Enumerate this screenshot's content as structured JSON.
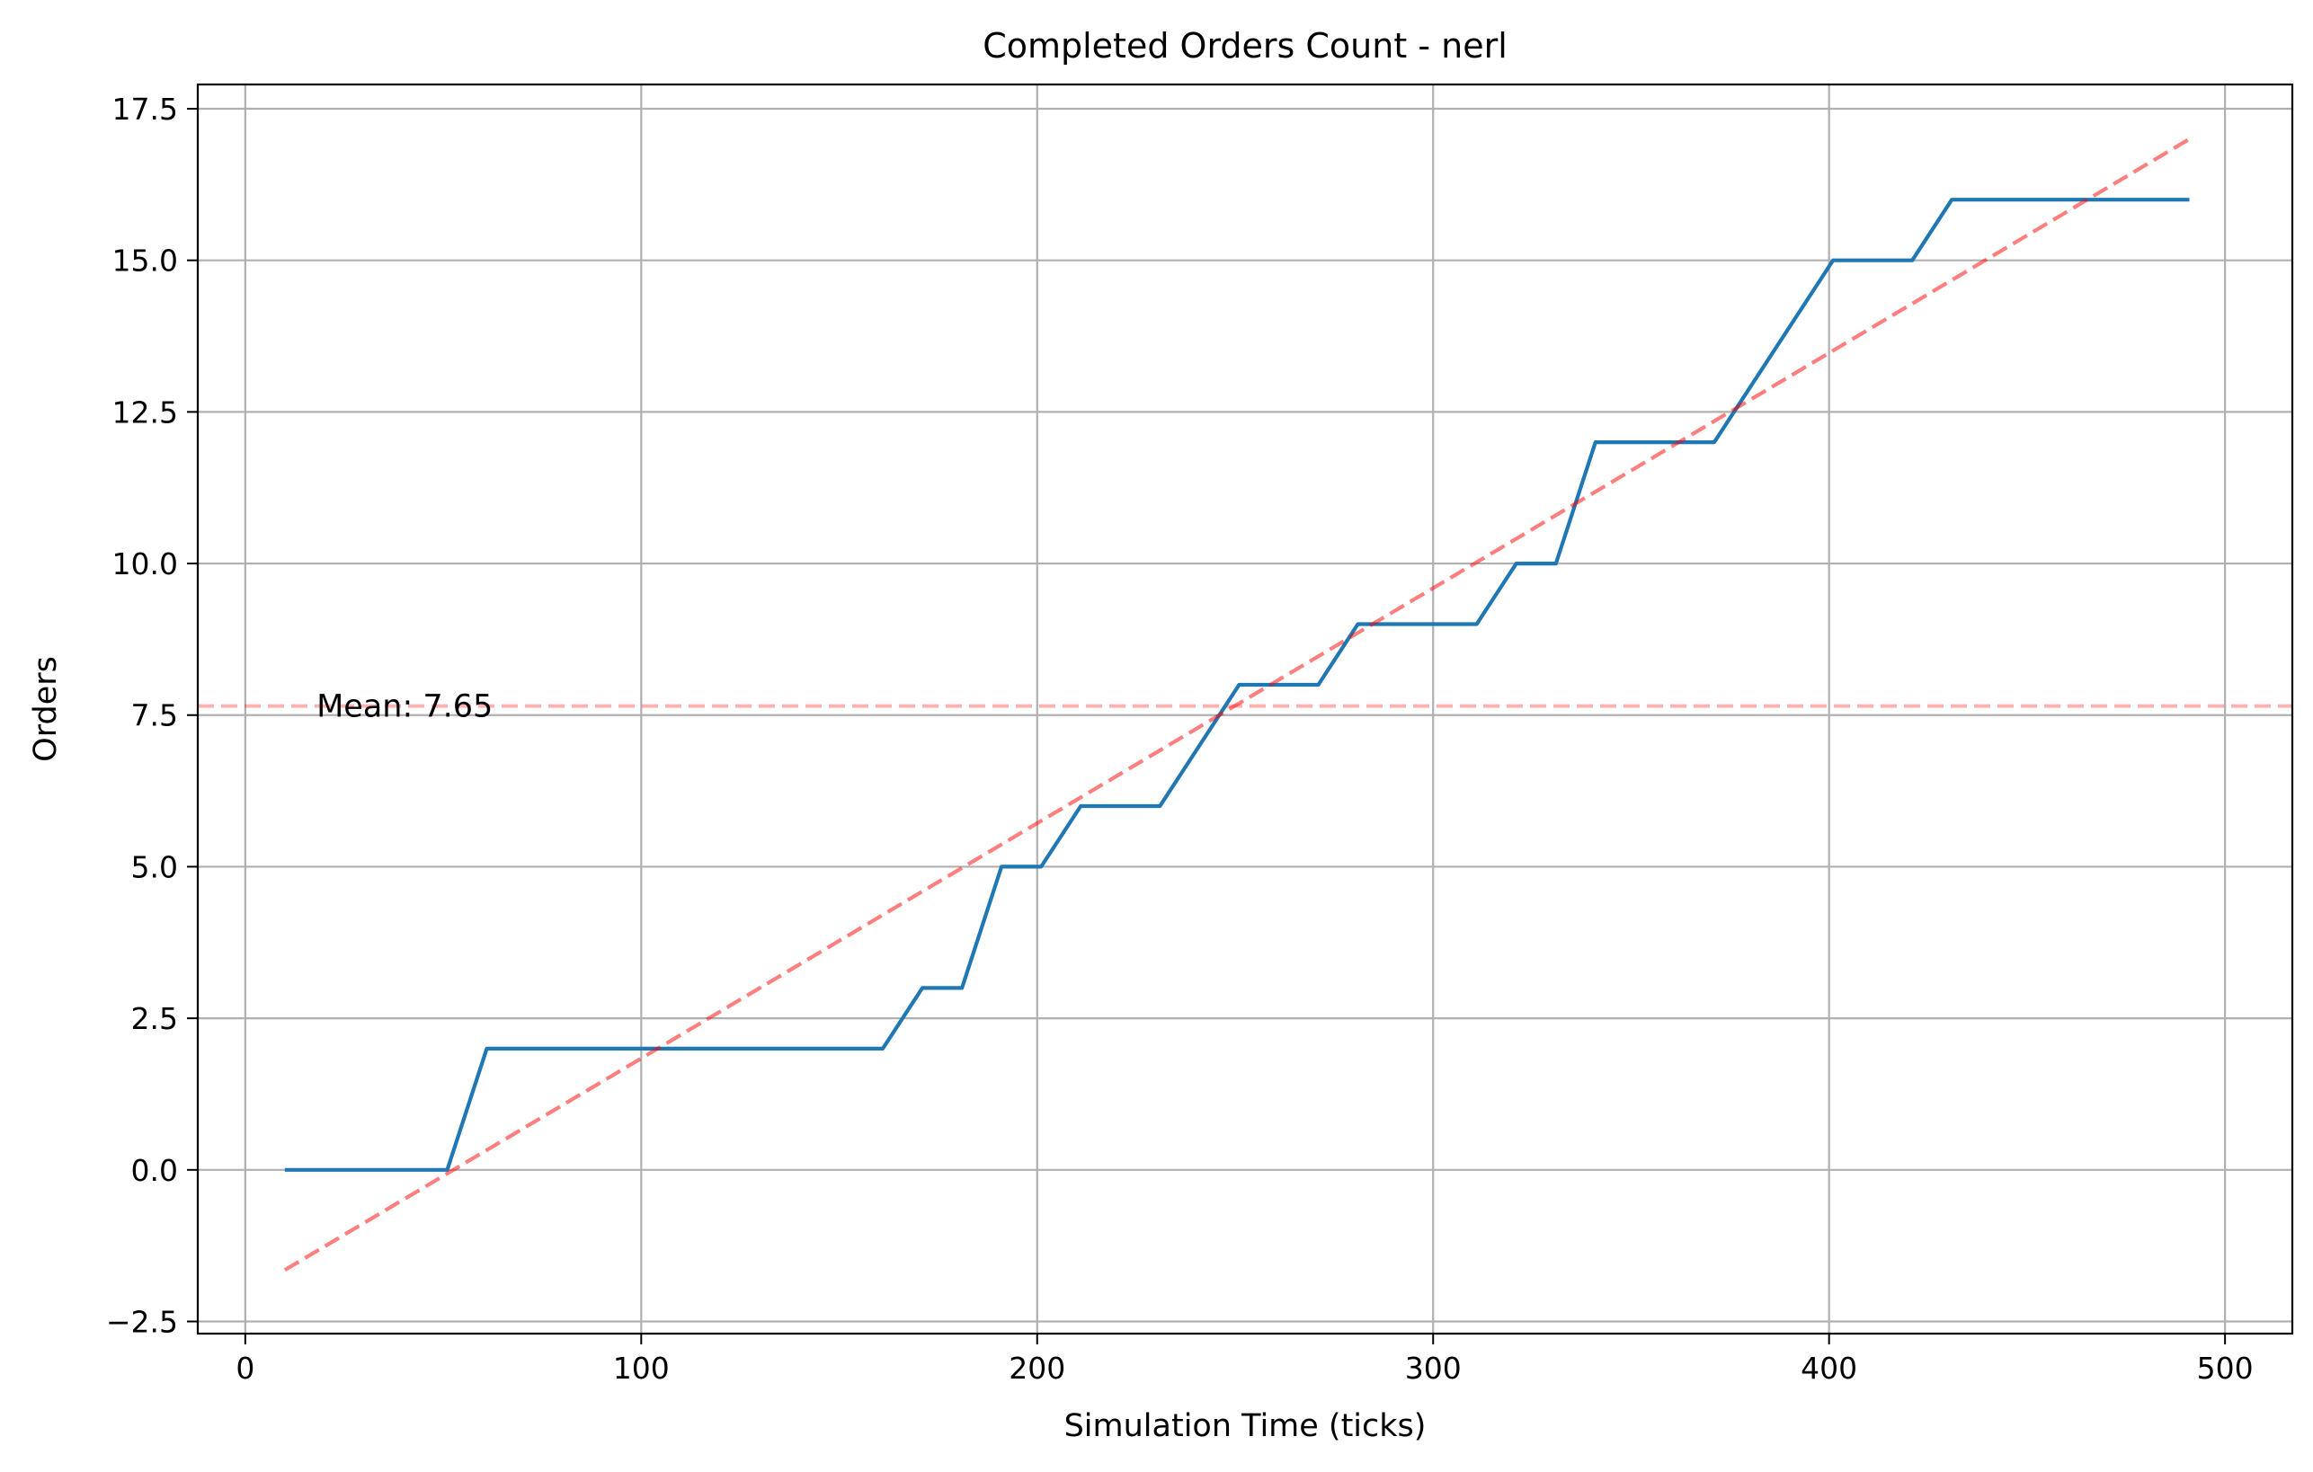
{
  "chart_data": {
    "type": "line",
    "title": "Completed Orders Count - nerl",
    "xlabel": "Simulation Time (ticks)",
    "ylabel": "Orders",
    "xlim": [
      -12,
      517
    ],
    "ylim": [
      -2.7,
      17.9
    ],
    "xticks": [
      0,
      100,
      200,
      300,
      400,
      500
    ],
    "yticks": [
      -2.5,
      0.0,
      2.5,
      5.0,
      7.5,
      10.0,
      12.5,
      15.0,
      17.5
    ],
    "xtick_labels": [
      "0",
      "100",
      "200",
      "300",
      "400",
      "500"
    ],
    "ytick_labels": [
      "−2.5",
      "0.0",
      "2.5",
      "5.0",
      "7.5",
      "10.0",
      "12.5",
      "15.0",
      "17.5"
    ],
    "grid": true,
    "series": [
      {
        "color": "#1f77b4",
        "style": "solid",
        "x": [
          10,
          51,
          61,
          161,
          171,
          181,
          191,
          201,
          211,
          231,
          251,
          271,
          281,
          311,
          321,
          331,
          341,
          371,
          401,
          421,
          431,
          491
        ],
        "y": [
          0,
          0,
          2,
          2,
          3,
          3,
          5,
          5,
          6,
          6,
          8,
          8,
          9,
          9,
          10,
          10,
          12,
          12,
          15,
          15,
          16,
          16
        ]
      },
      {
        "color": "#ff0000",
        "opacity": 0.5,
        "style": "dashed",
        "x": [
          10,
          491
        ],
        "y": [
          -1.65,
          17.0
        ]
      }
    ],
    "hlines": [
      {
        "y": 7.65,
        "color": "#ff0000",
        "opacity": 0.3,
        "style": "dashed"
      }
    ],
    "annotations": [
      {
        "text": "Mean: 7.65",
        "x": 13,
        "y": 7.65
      }
    ]
  }
}
